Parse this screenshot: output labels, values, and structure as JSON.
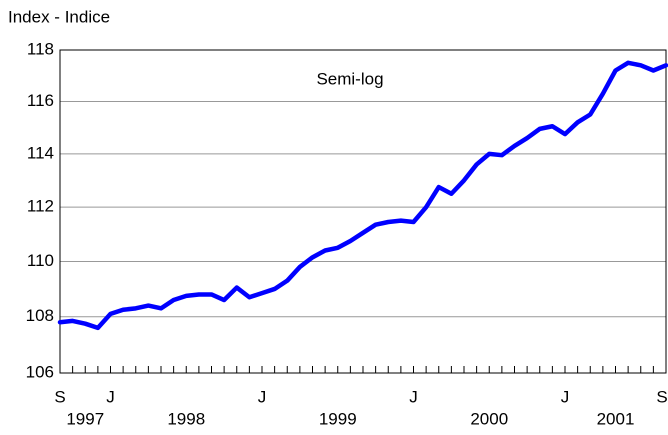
{
  "chart_data": {
    "type": "line",
    "y_axis_label": "Index - Indice",
    "annotation": "Semi-log",
    "yscale": "log",
    "ylim": [
      106,
      118
    ],
    "yticks": [
      106,
      108,
      110,
      112,
      114,
      116,
      118
    ],
    "grid": true,
    "categories": [
      "S",
      null,
      null,
      null,
      "J",
      null,
      null,
      null,
      null,
      null,
      null,
      null,
      null,
      null,
      null,
      null,
      "J",
      null,
      null,
      null,
      null,
      null,
      null,
      null,
      null,
      null,
      null,
      null,
      "J",
      null,
      null,
      null,
      null,
      null,
      null,
      null,
      null,
      null,
      null,
      null,
      "J",
      null,
      null,
      null,
      null,
      null,
      null,
      null,
      "S"
    ],
    "years": [
      "1997",
      "1998",
      "1999",
      "2000",
      "2001"
    ],
    "series": [
      {
        "color": "#0000ff",
        "values": [
          107.8,
          107.85,
          107.75,
          107.6,
          108.1,
          108.25,
          108.3,
          108.4,
          108.3,
          108.6,
          108.75,
          108.8,
          108.8,
          108.6,
          109.05,
          108.7,
          108.85,
          109.0,
          109.3,
          109.8,
          110.15,
          110.4,
          110.5,
          110.75,
          111.05,
          111.35,
          111.45,
          111.5,
          111.45,
          112.0,
          112.75,
          112.5,
          113.0,
          113.6,
          114.0,
          113.95,
          114.3,
          114.6,
          114.95,
          115.05,
          114.75,
          115.2,
          115.5,
          116.3,
          117.2,
          117.5,
          117.4,
          117.2,
          117.4
        ]
      }
    ]
  }
}
